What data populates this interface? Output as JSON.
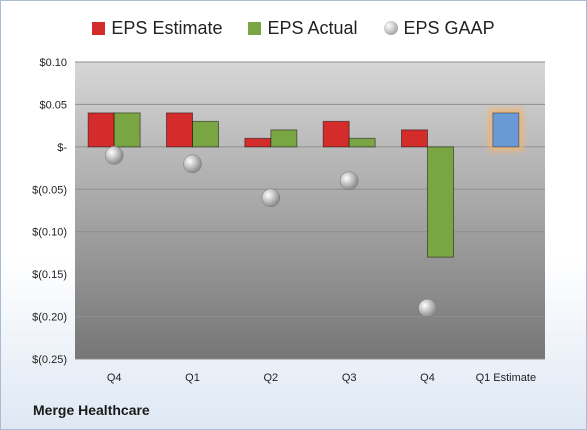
{
  "chart_data": {
    "type": "bar",
    "categories": [
      "Q4",
      "Q1",
      "Q2",
      "Q3",
      "Q4",
      "Q1 Estimate"
    ],
    "series": [
      {
        "name": "EPS Estimate",
        "values": [
          0.04,
          0.04,
          0.01,
          0.03,
          0.02,
          null
        ],
        "color": "#d42b2b"
      },
      {
        "name": "EPS Actual",
        "values": [
          0.04,
          0.03,
          0.02,
          0.01,
          -0.13,
          null
        ],
        "color": "#7aa543"
      },
      {
        "name": "EPS GAAP",
        "values": [
          -0.01,
          -0.02,
          -0.06,
          -0.04,
          -0.19,
          null
        ],
        "color": "#a9a9a9",
        "style": "bubble"
      }
    ],
    "forecast": {
      "category": "Q1 Estimate",
      "value": 0.04,
      "color": "#6a9ad6",
      "glow": "#f6b26b"
    },
    "yticks": [
      "$0.10",
      "$0.05",
      "$-",
      "$(0.05)",
      "$(0.10)",
      "$(0.15)",
      "$(0.20)",
      "$(0.25)"
    ],
    "ylim": [
      -0.25,
      0.1
    ],
    "grid": true,
    "legend_position": "top",
    "footer": "Merge Healthcare"
  }
}
